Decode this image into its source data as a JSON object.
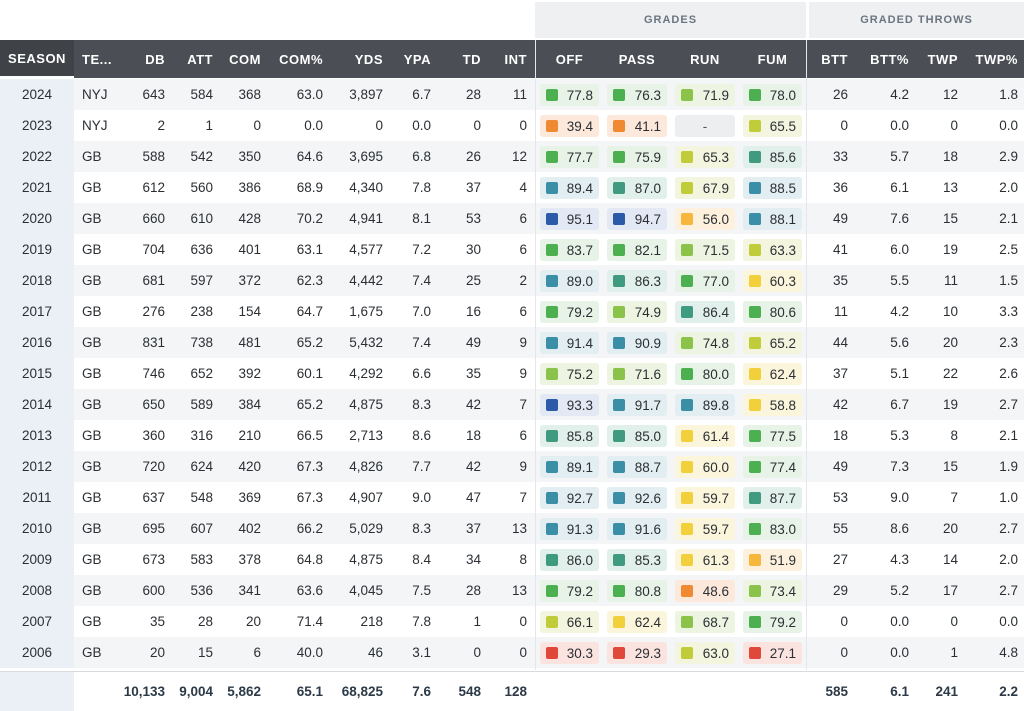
{
  "groups": {
    "grades": "GRADES",
    "graded_throws": "GRADED THROWS"
  },
  "columns": {
    "season": "SEASON",
    "team": "TE...",
    "db": "DB",
    "att": "ATT",
    "com": "COM",
    "com_pct": "COM%",
    "yds": "YDS",
    "ypa": "YPA",
    "td": "TD",
    "int": "INT",
    "off": "OFF",
    "pass": "PASS",
    "run": "RUN",
    "fum": "FUM",
    "btt": "BTT",
    "btt_pct": "BTT%",
    "twp": "TWP",
    "twp_pct": "TWP%"
  },
  "grade_colors": {
    "dark_blue": "#2a5aa8",
    "teal_blue": "#3a8ea6",
    "teal_green": "#3f9a80",
    "green": "#4caf50",
    "light_green": "#8bc34a",
    "yellow_green": "#c0cc3a",
    "yellow": "#f2d03b",
    "amber": "#f6b73c",
    "orange": "#f08a32",
    "red": "#e0483a"
  },
  "rows": [
    {
      "season": "2024",
      "team": "NYJ",
      "db": "643",
      "att": "584",
      "com": "368",
      "com_pct": "63.0",
      "yds": "3,897",
      "ypa": "6.7",
      "td": "28",
      "int": "11",
      "off": {
        "v": "77.8",
        "c": "green"
      },
      "pass": {
        "v": "76.3",
        "c": "green"
      },
      "run": {
        "v": "71.9",
        "c": "light_green"
      },
      "fum": {
        "v": "78.0",
        "c": "green"
      },
      "btt": "26",
      "btt_pct": "4.2",
      "twp": "12",
      "twp_pct": "1.8"
    },
    {
      "season": "2023",
      "team": "NYJ",
      "db": "2",
      "att": "1",
      "com": "0",
      "com_pct": "0.0",
      "yds": "0",
      "ypa": "0.0",
      "td": "0",
      "int": "0",
      "off": {
        "v": "39.4",
        "c": "orange"
      },
      "pass": {
        "v": "41.1",
        "c": "orange"
      },
      "run": {
        "v": "-",
        "c": ""
      },
      "fum": {
        "v": "65.5",
        "c": "yellow_green"
      },
      "btt": "0",
      "btt_pct": "0.0",
      "twp": "0",
      "twp_pct": "0.0"
    },
    {
      "season": "2022",
      "team": "GB",
      "db": "588",
      "att": "542",
      "com": "350",
      "com_pct": "64.6",
      "yds": "3,695",
      "ypa": "6.8",
      "td": "26",
      "int": "12",
      "off": {
        "v": "77.7",
        "c": "green"
      },
      "pass": {
        "v": "75.9",
        "c": "green"
      },
      "run": {
        "v": "65.3",
        "c": "yellow_green"
      },
      "fum": {
        "v": "85.6",
        "c": "teal_green"
      },
      "btt": "33",
      "btt_pct": "5.7",
      "twp": "18",
      "twp_pct": "2.9"
    },
    {
      "season": "2021",
      "team": "GB",
      "db": "612",
      "att": "560",
      "com": "386",
      "com_pct": "68.9",
      "yds": "4,340",
      "ypa": "7.8",
      "td": "37",
      "int": "4",
      "off": {
        "v": "89.4",
        "c": "teal_blue"
      },
      "pass": {
        "v": "87.0",
        "c": "teal_green"
      },
      "run": {
        "v": "67.9",
        "c": "yellow_green"
      },
      "fum": {
        "v": "88.5",
        "c": "teal_blue"
      },
      "btt": "36",
      "btt_pct": "6.1",
      "twp": "13",
      "twp_pct": "2.0"
    },
    {
      "season": "2020",
      "team": "GB",
      "db": "660",
      "att": "610",
      "com": "428",
      "com_pct": "70.2",
      "yds": "4,941",
      "ypa": "8.1",
      "td": "53",
      "int": "6",
      "off": {
        "v": "95.1",
        "c": "dark_blue"
      },
      "pass": {
        "v": "94.7",
        "c": "dark_blue"
      },
      "run": {
        "v": "56.0",
        "c": "amber"
      },
      "fum": {
        "v": "88.1",
        "c": "teal_blue"
      },
      "btt": "49",
      "btt_pct": "7.6",
      "twp": "15",
      "twp_pct": "2.1"
    },
    {
      "season": "2019",
      "team": "GB",
      "db": "704",
      "att": "636",
      "com": "401",
      "com_pct": "63.1",
      "yds": "4,577",
      "ypa": "7.2",
      "td": "30",
      "int": "6",
      "off": {
        "v": "83.7",
        "c": "green"
      },
      "pass": {
        "v": "82.1",
        "c": "green"
      },
      "run": {
        "v": "71.5",
        "c": "light_green"
      },
      "fum": {
        "v": "63.3",
        "c": "yellow_green"
      },
      "btt": "41",
      "btt_pct": "6.0",
      "twp": "19",
      "twp_pct": "2.5"
    },
    {
      "season": "2018",
      "team": "GB",
      "db": "681",
      "att": "597",
      "com": "372",
      "com_pct": "62.3",
      "yds": "4,442",
      "ypa": "7.4",
      "td": "25",
      "int": "2",
      "off": {
        "v": "89.0",
        "c": "teal_blue"
      },
      "pass": {
        "v": "86.3",
        "c": "teal_green"
      },
      "run": {
        "v": "77.0",
        "c": "green"
      },
      "fum": {
        "v": "60.3",
        "c": "yellow"
      },
      "btt": "35",
      "btt_pct": "5.5",
      "twp": "11",
      "twp_pct": "1.5"
    },
    {
      "season": "2017",
      "team": "GB",
      "db": "276",
      "att": "238",
      "com": "154",
      "com_pct": "64.7",
      "yds": "1,675",
      "ypa": "7.0",
      "td": "16",
      "int": "6",
      "off": {
        "v": "79.2",
        "c": "green"
      },
      "pass": {
        "v": "74.9",
        "c": "light_green"
      },
      "run": {
        "v": "86.4",
        "c": "teal_green"
      },
      "fum": {
        "v": "80.6",
        "c": "green"
      },
      "btt": "11",
      "btt_pct": "4.2",
      "twp": "10",
      "twp_pct": "3.3"
    },
    {
      "season": "2016",
      "team": "GB",
      "db": "831",
      "att": "738",
      "com": "481",
      "com_pct": "65.2",
      "yds": "5,432",
      "ypa": "7.4",
      "td": "49",
      "int": "9",
      "off": {
        "v": "91.4",
        "c": "teal_blue"
      },
      "pass": {
        "v": "90.9",
        "c": "teal_blue"
      },
      "run": {
        "v": "74.8",
        "c": "light_green"
      },
      "fum": {
        "v": "65.2",
        "c": "yellow_green"
      },
      "btt": "44",
      "btt_pct": "5.6",
      "twp": "20",
      "twp_pct": "2.3"
    },
    {
      "season": "2015",
      "team": "GB",
      "db": "746",
      "att": "652",
      "com": "392",
      "com_pct": "60.1",
      "yds": "4,292",
      "ypa": "6.6",
      "td": "35",
      "int": "9",
      "off": {
        "v": "75.2",
        "c": "light_green"
      },
      "pass": {
        "v": "71.6",
        "c": "light_green"
      },
      "run": {
        "v": "80.0",
        "c": "green"
      },
      "fum": {
        "v": "62.4",
        "c": "yellow"
      },
      "btt": "37",
      "btt_pct": "5.1",
      "twp": "22",
      "twp_pct": "2.6"
    },
    {
      "season": "2014",
      "team": "GB",
      "db": "650",
      "att": "589",
      "com": "384",
      "com_pct": "65.2",
      "yds": "4,875",
      "ypa": "8.3",
      "td": "42",
      "int": "7",
      "off": {
        "v": "93.3",
        "c": "dark_blue"
      },
      "pass": {
        "v": "91.7",
        "c": "teal_blue"
      },
      "run": {
        "v": "89.8",
        "c": "teal_blue"
      },
      "fum": {
        "v": "58.8",
        "c": "yellow"
      },
      "btt": "42",
      "btt_pct": "6.7",
      "twp": "19",
      "twp_pct": "2.7"
    },
    {
      "season": "2013",
      "team": "GB",
      "db": "360",
      "att": "316",
      "com": "210",
      "com_pct": "66.5",
      "yds": "2,713",
      "ypa": "8.6",
      "td": "18",
      "int": "6",
      "off": {
        "v": "85.8",
        "c": "teal_green"
      },
      "pass": {
        "v": "85.0",
        "c": "teal_green"
      },
      "run": {
        "v": "61.4",
        "c": "yellow"
      },
      "fum": {
        "v": "77.5",
        "c": "green"
      },
      "btt": "18",
      "btt_pct": "5.3",
      "twp": "8",
      "twp_pct": "2.1"
    },
    {
      "season": "2012",
      "team": "GB",
      "db": "720",
      "att": "624",
      "com": "420",
      "com_pct": "67.3",
      "yds": "4,826",
      "ypa": "7.7",
      "td": "42",
      "int": "9",
      "off": {
        "v": "89.1",
        "c": "teal_blue"
      },
      "pass": {
        "v": "88.7",
        "c": "teal_blue"
      },
      "run": {
        "v": "60.0",
        "c": "yellow"
      },
      "fum": {
        "v": "77.4",
        "c": "green"
      },
      "btt": "49",
      "btt_pct": "7.3",
      "twp": "15",
      "twp_pct": "1.9"
    },
    {
      "season": "2011",
      "team": "GB",
      "db": "637",
      "att": "548",
      "com": "369",
      "com_pct": "67.3",
      "yds": "4,907",
      "ypa": "9.0",
      "td": "47",
      "int": "7",
      "off": {
        "v": "92.7",
        "c": "teal_blue"
      },
      "pass": {
        "v": "92.6",
        "c": "teal_blue"
      },
      "run": {
        "v": "59.7",
        "c": "yellow"
      },
      "fum": {
        "v": "87.7",
        "c": "teal_green"
      },
      "btt": "53",
      "btt_pct": "9.0",
      "twp": "7",
      "twp_pct": "1.0"
    },
    {
      "season": "2010",
      "team": "GB",
      "db": "695",
      "att": "607",
      "com": "402",
      "com_pct": "66.2",
      "yds": "5,029",
      "ypa": "8.3",
      "td": "37",
      "int": "13",
      "off": {
        "v": "91.3",
        "c": "teal_blue"
      },
      "pass": {
        "v": "91.6",
        "c": "teal_blue"
      },
      "run": {
        "v": "59.7",
        "c": "yellow"
      },
      "fum": {
        "v": "83.0",
        "c": "green"
      },
      "btt": "55",
      "btt_pct": "8.6",
      "twp": "20",
      "twp_pct": "2.7"
    },
    {
      "season": "2009",
      "team": "GB",
      "db": "673",
      "att": "583",
      "com": "378",
      "com_pct": "64.8",
      "yds": "4,875",
      "ypa": "8.4",
      "td": "34",
      "int": "8",
      "off": {
        "v": "86.0",
        "c": "teal_green"
      },
      "pass": {
        "v": "85.3",
        "c": "teal_green"
      },
      "run": {
        "v": "61.3",
        "c": "yellow"
      },
      "fum": {
        "v": "51.9",
        "c": "amber"
      },
      "btt": "27",
      "btt_pct": "4.3",
      "twp": "14",
      "twp_pct": "2.0"
    },
    {
      "season": "2008",
      "team": "GB",
      "db": "600",
      "att": "536",
      "com": "341",
      "com_pct": "63.6",
      "yds": "4,045",
      "ypa": "7.5",
      "td": "28",
      "int": "13",
      "off": {
        "v": "79.2",
        "c": "green"
      },
      "pass": {
        "v": "80.8",
        "c": "green"
      },
      "run": {
        "v": "48.6",
        "c": "orange"
      },
      "fum": {
        "v": "73.4",
        "c": "light_green"
      },
      "btt": "29",
      "btt_pct": "5.2",
      "twp": "17",
      "twp_pct": "2.7"
    },
    {
      "season": "2007",
      "team": "GB",
      "db": "35",
      "att": "28",
      "com": "20",
      "com_pct": "71.4",
      "yds": "218",
      "ypa": "7.8",
      "td": "1",
      "int": "0",
      "off": {
        "v": "66.1",
        "c": "yellow_green"
      },
      "pass": {
        "v": "62.4",
        "c": "yellow"
      },
      "run": {
        "v": "68.7",
        "c": "light_green"
      },
      "fum": {
        "v": "79.2",
        "c": "green"
      },
      "btt": "0",
      "btt_pct": "0.0",
      "twp": "0",
      "twp_pct": "0.0"
    },
    {
      "season": "2006",
      "team": "GB",
      "db": "20",
      "att": "15",
      "com": "6",
      "com_pct": "40.0",
      "yds": "46",
      "ypa": "3.1",
      "td": "0",
      "int": "0",
      "off": {
        "v": "30.3",
        "c": "red"
      },
      "pass": {
        "v": "29.3",
        "c": "red"
      },
      "run": {
        "v": "63.0",
        "c": "yellow_green"
      },
      "fum": {
        "v": "27.1",
        "c": "red"
      },
      "btt": "0",
      "btt_pct": "0.0",
      "twp": "1",
      "twp_pct": "4.8"
    }
  ],
  "totals": {
    "db": "10,133",
    "att": "9,004",
    "com": "5,862",
    "com_pct": "65.1",
    "yds": "68,825",
    "ypa": "7.6",
    "td": "548",
    "int": "128",
    "btt": "585",
    "btt_pct": "6.1",
    "twp": "241",
    "twp_pct": "2.2"
  }
}
